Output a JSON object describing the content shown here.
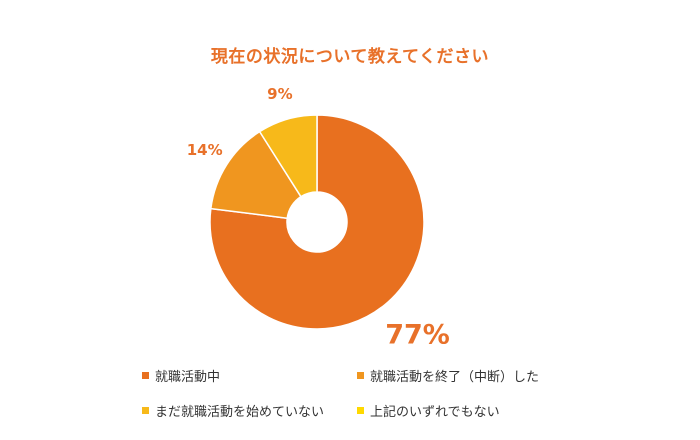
{
  "chart_data": {
    "type": "pie",
    "title": "現在の状況について教えてください",
    "categories": [
      "就職活動中",
      "就職活動を終了（中断）した",
      "まだ就職活動を始めていない",
      "上記のいずれでもない"
    ],
    "values": [
      77,
      14,
      9,
      0
    ],
    "labels": [
      "77%",
      "14%",
      "9%",
      ""
    ],
    "colors": [
      "#e8701f",
      "#f0961f",
      "#f7b91a",
      "#ffd900"
    ],
    "label_color": "#e8712a",
    "donut": true,
    "legend_position": "bottom"
  }
}
